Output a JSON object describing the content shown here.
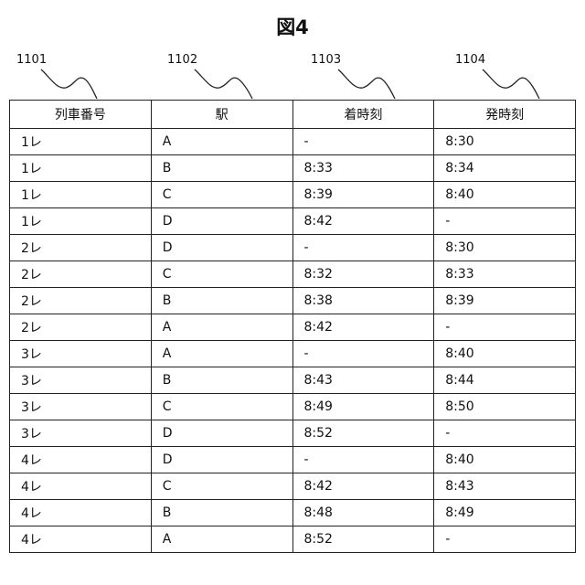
{
  "figure_title": "図4",
  "reference_labels": [
    "1101",
    "1102",
    "1103",
    "1104"
  ],
  "table": {
    "headers": [
      "列車番号",
      "駅",
      "着時刻",
      "発時刻"
    ],
    "rows": [
      [
        "1レ",
        "A",
        "-",
        "8:30"
      ],
      [
        "1レ",
        "B",
        "8:33",
        "8:34"
      ],
      [
        "1レ",
        "C",
        "8:39",
        "8:40"
      ],
      [
        "1レ",
        "D",
        "8:42",
        "-"
      ],
      [
        "2レ",
        "D",
        "-",
        "8:30"
      ],
      [
        "2レ",
        "C",
        "8:32",
        "8:33"
      ],
      [
        "2レ",
        "B",
        "8:38",
        "8:39"
      ],
      [
        "2レ",
        "A",
        "8:42",
        "-"
      ],
      [
        "3レ",
        "A",
        "-",
        "8:40"
      ],
      [
        "3レ",
        "B",
        "8:43",
        "8:44"
      ],
      [
        "3レ",
        "C",
        "8:49",
        "8:50"
      ],
      [
        "3レ",
        "D",
        "8:52",
        "-"
      ],
      [
        "4レ",
        "D",
        "-",
        "8:40"
      ],
      [
        "4レ",
        "C",
        "8:42",
        "8:43"
      ],
      [
        "4レ",
        "B",
        "8:48",
        "8:49"
      ],
      [
        "4レ",
        "A",
        "8:52",
        "-"
      ]
    ]
  }
}
